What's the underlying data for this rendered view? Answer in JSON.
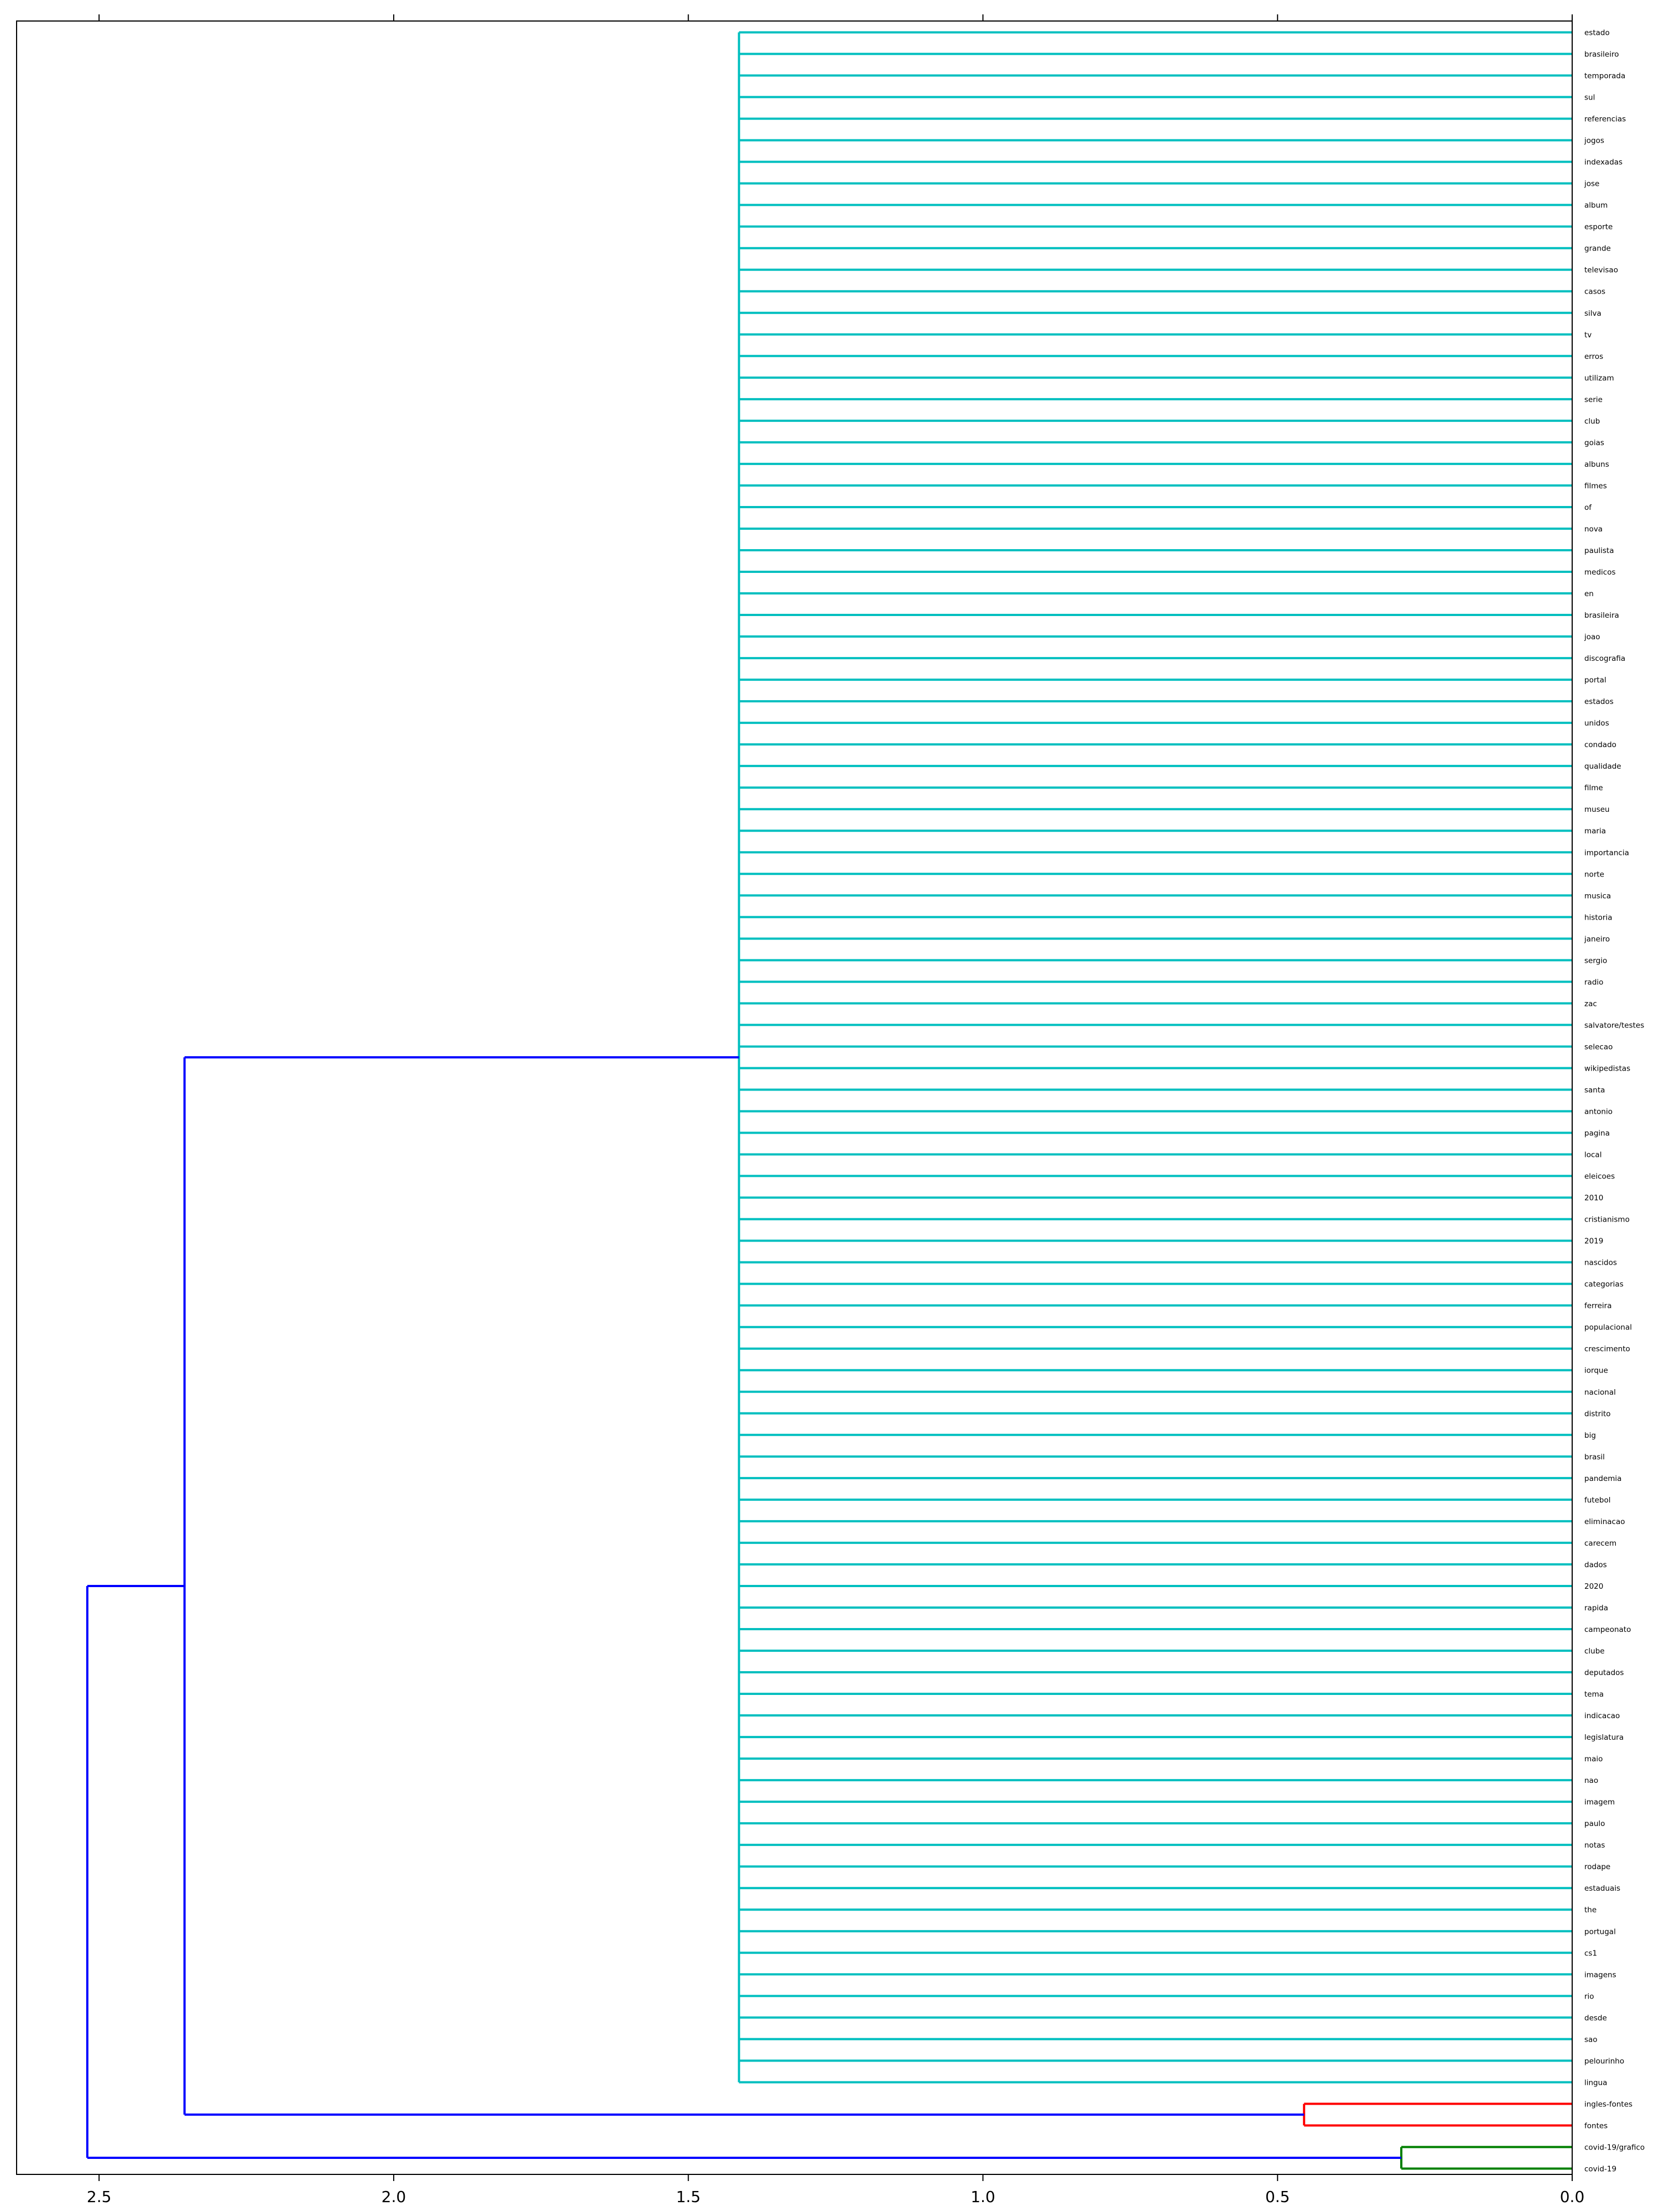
{
  "chart_data": {
    "type": "dendrogram",
    "orientation": "left",
    "xlim": [
      2.64,
      0.0
    ],
    "x_ticks": [
      2.5,
      2.0,
      1.5,
      1.0,
      0.5,
      0.0
    ],
    "x_tick_labels": [
      "2.5",
      "2.0",
      "1.5",
      "1.0",
      "0.5",
      "0.0"
    ],
    "grid": false,
    "legend": "none",
    "colors": {
      "cluster_main": "#00bfbf",
      "cluster_ingles": "#ff0000",
      "cluster_covid": "#008000",
      "above_threshold": "#0000ff",
      "axis": "#000000"
    },
    "leaves": [
      "estado",
      "brasileiro",
      "temporada",
      "sul",
      "referencias",
      "jogos",
      "indexadas",
      "jose",
      "album",
      "esporte",
      "grande",
      "televisao",
      "casos",
      "silva",
      "tv",
      "erros",
      "utilizam",
      "serie",
      "club",
      "goias",
      "albuns",
      "filmes",
      "of",
      "nova",
      "paulista",
      "medicos",
      "en",
      "brasileira",
      "joao",
      "discografia",
      "portal",
      "estados",
      "unidos",
      "condado",
      "qualidade",
      "filme",
      "museu",
      "maria",
      "importancia",
      "norte",
      "musica",
      "historia",
      "janeiro",
      "sergio",
      "radio",
      "zac",
      "salvatore/testes",
      "selecao",
      "wikipedistas",
      "santa",
      "antonio",
      "pagina",
      "local",
      "eleicoes",
      "2010",
      "cristianismo",
      "2019",
      "nascidos",
      "categorias",
      "ferreira",
      "populacional",
      "crescimento",
      "iorque",
      "nacional",
      "distrito",
      "big",
      "brasil",
      "pandemia",
      "futebol",
      "eliminacao",
      "carecem",
      "dados",
      "2020",
      "rapida",
      "campeonato",
      "clube",
      "deputados",
      "tema",
      "indicacao",
      "legislatura",
      "maio",
      "nao",
      "imagem",
      "paulo",
      "notas",
      "rodape",
      "estaduais",
      "the",
      "portugal",
      "cs1",
      "imagens",
      "rio",
      "desde",
      "sao",
      "pelourinho",
      "lingua",
      "ingles-fontes",
      "fontes",
      "covid-19/grafico",
      "covid-19"
    ],
    "merges": [
      {
        "members": "estado … lingua (96 leaves)",
        "height": 1.414,
        "color": "cluster_main"
      },
      {
        "members": [
          "ingles-fontes",
          "fontes"
        ],
        "height": 0.455,
        "color": "cluster_ingles"
      },
      {
        "members": [
          "covid-19/grafico",
          "covid-19"
        ],
        "height": 0.29,
        "color": "cluster_covid"
      },
      {
        "members": [
          "main cluster",
          "ingles cluster"
        ],
        "height": 2.355,
        "color": "above_threshold"
      },
      {
        "members": [
          "previous",
          "covid cluster"
        ],
        "height": 2.52,
        "color": "above_threshold"
      }
    ],
    "main_cluster_leaf_count": 96,
    "main_cluster_height": 1.414,
    "pair_ingles_height": 0.455,
    "pair_covid_height": 0.29,
    "join_main_ingles_height": 2.355,
    "root_height": 2.52
  }
}
